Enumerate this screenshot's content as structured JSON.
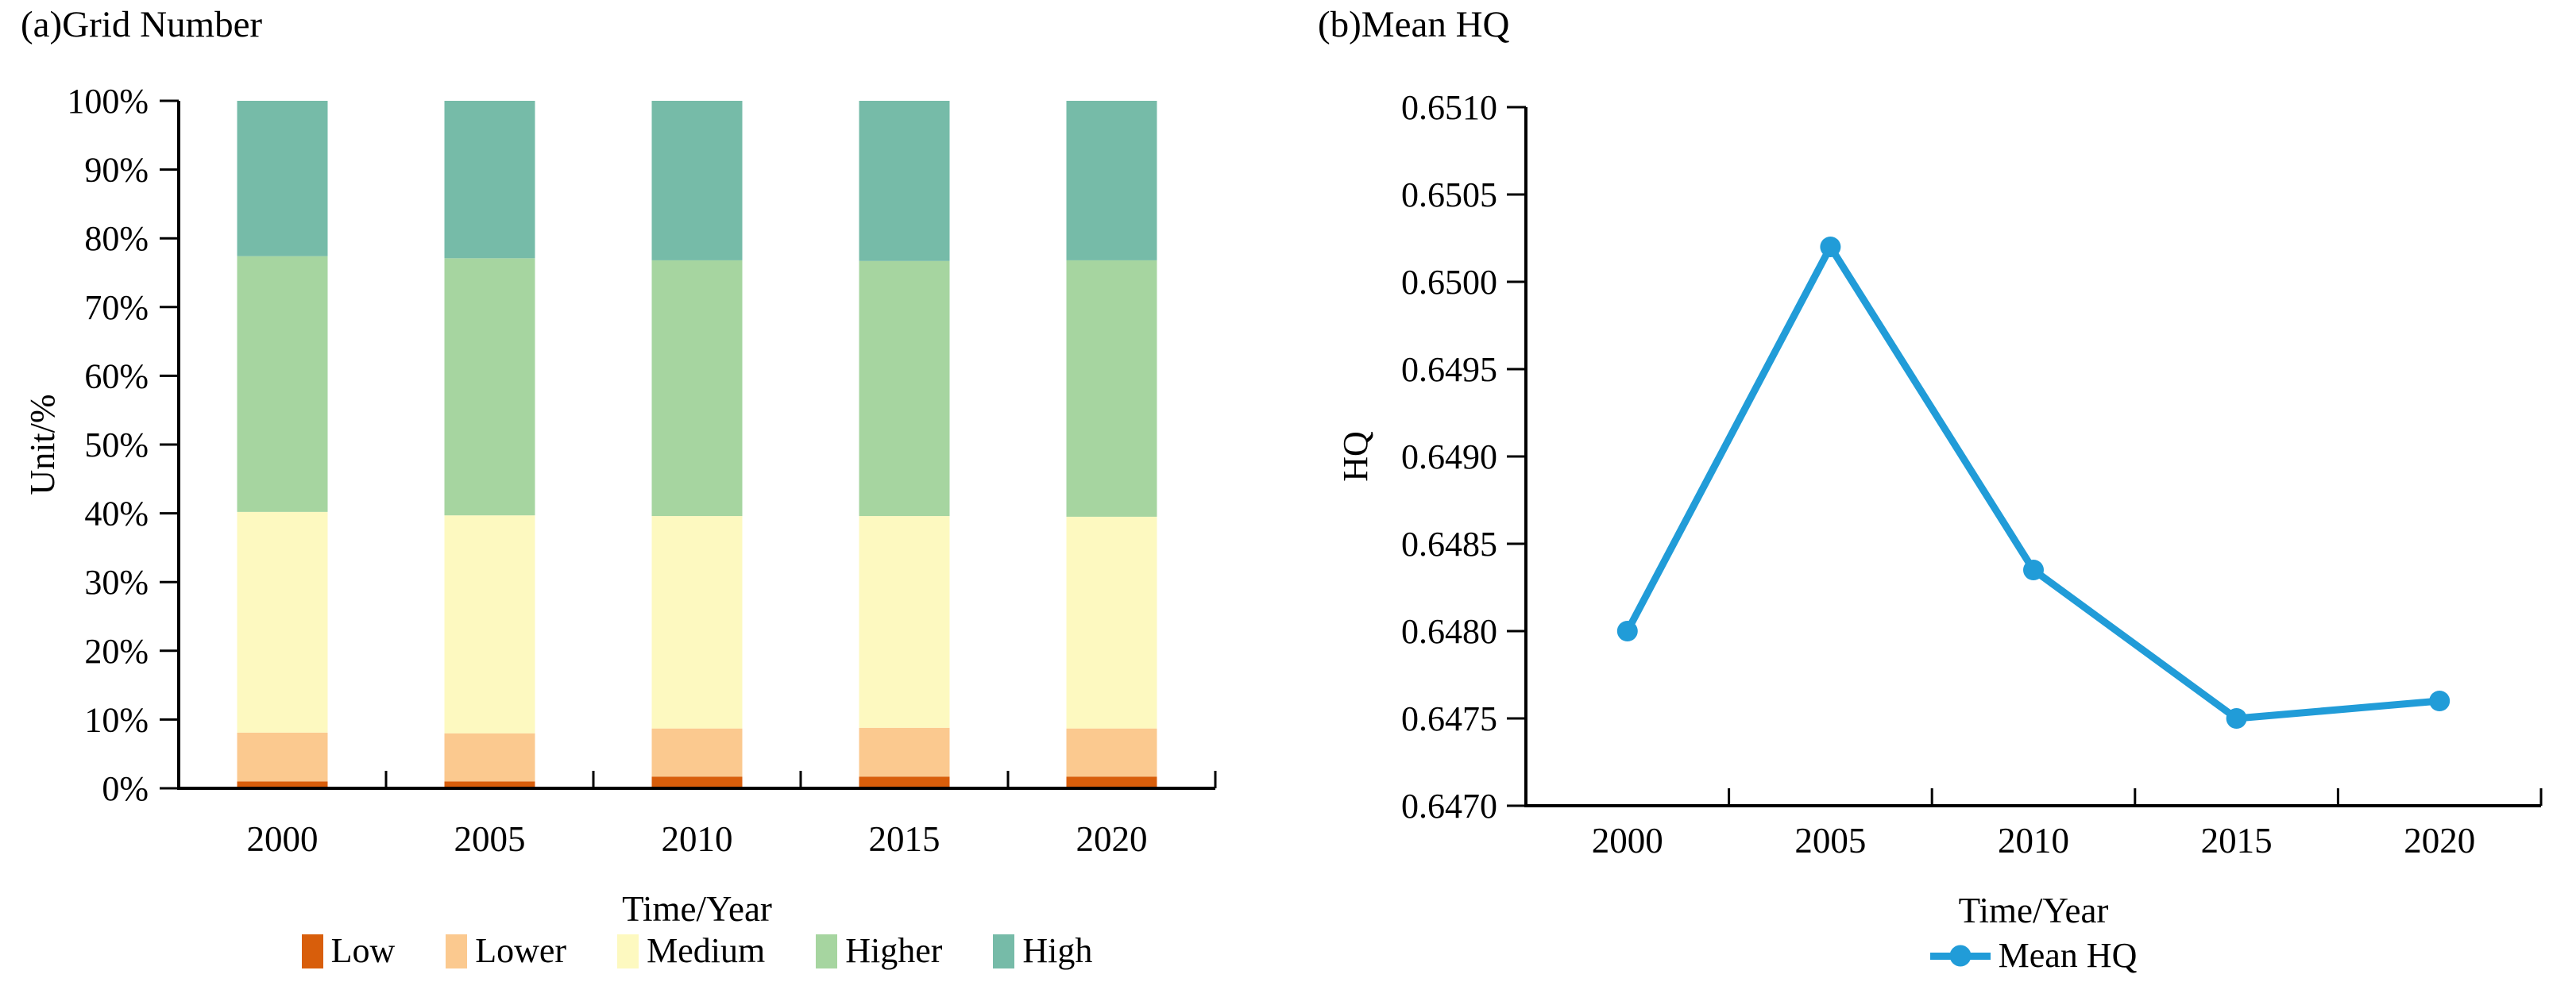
{
  "chart_data": [
    {
      "type": "bar",
      "stacked": true,
      "title": "(a)Grid Number",
      "xlabel": "Time/Year",
      "ylabel": "Unit/%",
      "categories": [
        "2000",
        "2005",
        "2010",
        "2015",
        "2020"
      ],
      "series": [
        {
          "name": "Low",
          "color": "#D85E0B",
          "values": [
            1.0,
            1.0,
            1.7,
            1.7,
            1.7
          ]
        },
        {
          "name": "Lower",
          "color": "#FBC98F",
          "values": [
            7.1,
            7.0,
            7.0,
            7.1,
            7.0
          ]
        },
        {
          "name": "Medium",
          "color": "#FDF9C0",
          "values": [
            32.1,
            31.7,
            30.9,
            30.8,
            30.8
          ]
        },
        {
          "name": "Higher",
          "color": "#A6D5A0",
          "values": [
            37.2,
            37.4,
            37.2,
            37.1,
            37.3
          ]
        },
        {
          "name": "High",
          "color": "#76BBA8",
          "values": [
            22.6,
            22.9,
            23.2,
            23.3,
            23.2
          ]
        }
      ],
      "ylim": [
        0,
        100
      ],
      "yticks": [
        "0%",
        "10%",
        "20%",
        "30%",
        "40%",
        "50%",
        "60%",
        "70%",
        "80%",
        "90%",
        "100%"
      ],
      "grid": false,
      "legend_position": "bottom"
    },
    {
      "type": "line",
      "title": "(b)Mean HQ",
      "xlabel": "Time/Year",
      "ylabel": "HQ",
      "categories": [
        "2000",
        "2005",
        "2010",
        "2015",
        "2020"
      ],
      "series": [
        {
          "name": "Mean HQ",
          "color": "#219CD8",
          "values": [
            0.648,
            0.6502,
            0.64835,
            0.6475,
            0.6476
          ]
        }
      ],
      "ylim": [
        0.647,
        0.651
      ],
      "yticks": [
        "0.6470",
        "0.6475",
        "0.6480",
        "0.6485",
        "0.6490",
        "0.6495",
        "0.6500",
        "0.6505",
        "0.6510"
      ],
      "grid": false,
      "legend_position": "bottom"
    }
  ]
}
